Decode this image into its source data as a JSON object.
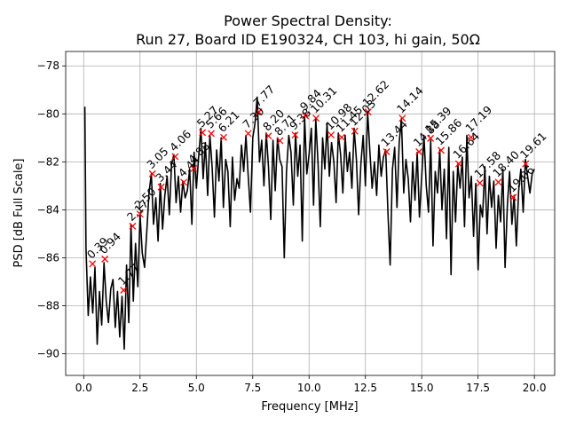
{
  "chart_data": {
    "type": "line",
    "title_line1": "Power Spectral Density:",
    "title_line2": "Run 27, Board ID E190324, CH 103, hi gain, 50Ω",
    "xlabel": "Frequency [MHz]",
    "ylabel": "PSD [dB Full Scale]",
    "xlim": [
      -0.8,
      20.9
    ],
    "ylim": [
      -90.9,
      -77.4
    ],
    "xticks": [
      0.0,
      2.5,
      5.0,
      7.5,
      10.0,
      12.5,
      15.0,
      17.5,
      20.0
    ],
    "xtick_labels": [
      "0.0",
      "2.5",
      "5.0",
      "7.5",
      "10.0",
      "12.5",
      "15.0",
      "17.5",
      "20.0"
    ],
    "yticks": [
      -90,
      -88,
      -86,
      -84,
      -82,
      -80,
      -78
    ],
    "ytick_labels": [
      "−90",
      "−88",
      "−86",
      "−84",
      "−82",
      "−80",
      "−78"
    ],
    "grid": true,
    "series": [
      {
        "color": "#000000",
        "x": [
          0.05,
          0.1,
          0.2,
          0.3,
          0.4,
          0.5,
          0.6,
          0.7,
          0.8,
          0.9,
          1.0,
          1.1,
          1.2,
          1.3,
          1.4,
          1.5,
          1.6,
          1.7,
          1.8,
          1.9,
          2.0,
          2.1,
          2.2,
          2.3,
          2.4,
          2.5,
          2.6,
          2.7,
          2.8,
          2.9,
          3.0,
          3.1,
          3.2,
          3.3,
          3.4,
          3.5,
          3.6,
          3.7,
          3.8,
          3.9,
          4.0,
          4.1,
          4.2,
          4.3,
          4.4,
          4.5,
          4.6,
          4.7,
          4.8,
          4.9,
          5.0,
          5.1,
          5.2,
          5.3,
          5.4,
          5.5,
          5.6,
          5.7,
          5.8,
          5.9,
          6.0,
          6.1,
          6.2,
          6.3,
          6.4,
          6.5,
          6.6,
          6.7,
          6.8,
          6.9,
          7.0,
          7.1,
          7.2,
          7.3,
          7.4,
          7.5,
          7.6,
          7.7,
          7.8,
          7.9,
          8.0,
          8.1,
          8.2,
          8.3,
          8.4,
          8.5,
          8.6,
          8.7,
          8.8,
          8.9,
          9.0,
          9.1,
          9.2,
          9.3,
          9.4,
          9.5,
          9.6,
          9.7,
          9.8,
          9.9,
          10.0,
          10.1,
          10.2,
          10.3,
          10.4,
          10.5,
          10.6,
          10.7,
          10.8,
          10.9,
          11.0,
          11.1,
          11.2,
          11.3,
          11.4,
          11.5,
          11.6,
          11.7,
          11.8,
          11.9,
          12.0,
          12.1,
          12.2,
          12.3,
          12.4,
          12.5,
          12.6,
          12.7,
          12.8,
          12.9,
          13.0,
          13.1,
          13.2,
          13.3,
          13.4,
          13.5,
          13.6,
          13.7,
          13.8,
          13.9,
          14.0,
          14.1,
          14.2,
          14.3,
          14.4,
          14.5,
          14.6,
          14.7,
          14.8,
          14.9,
          15.0,
          15.1,
          15.2,
          15.3,
          15.4,
          15.5,
          15.6,
          15.7,
          15.8,
          15.9,
          16.0,
          16.1,
          16.2,
          16.3,
          16.4,
          16.5,
          16.6,
          16.7,
          16.8,
          16.9,
          17.0,
          17.1,
          17.2,
          17.3,
          17.4,
          17.5,
          17.6,
          17.7,
          17.8,
          17.9,
          18.0,
          18.1,
          18.2,
          18.3,
          18.4,
          18.5,
          18.6,
          18.7,
          18.8,
          18.9,
          19.0,
          19.1,
          19.2,
          19.3,
          19.4,
          19.5,
          19.6,
          19.7,
          19.8,
          19.9,
          20.0
        ],
        "y": [
          -79.7,
          -85.6,
          -88.4,
          -86.8,
          -88.3,
          -86.4,
          -89.6,
          -87.4,
          -88.8,
          -86.2,
          -87.8,
          -88.7,
          -87.3,
          -86.9,
          -88.9,
          -87.4,
          -89.3,
          -87.6,
          -89.8,
          -86.3,
          -88.7,
          -84.6,
          -87.8,
          -85.4,
          -87.2,
          -84.2,
          -85.8,
          -86.4,
          -84.9,
          -83.3,
          -82.5,
          -84.6,
          -83.5,
          -85.3,
          -82.9,
          -84.8,
          -83.4,
          -82.6,
          -84.2,
          -82.1,
          -81.7,
          -83.7,
          -82.6,
          -84.1,
          -82.8,
          -83.5,
          -83.2,
          -82.3,
          -84.6,
          -81.6,
          -83.1,
          -81.8,
          -80.6,
          -82.7,
          -81.2,
          -83.4,
          -80.9,
          -82.2,
          -84.3,
          -81.5,
          -82.8,
          -81.0,
          -83.9,
          -81.9,
          -82.4,
          -84.7,
          -81.8,
          -83.6,
          -82.7,
          -83.1,
          -81.3,
          -82.4,
          -80.9,
          -82.6,
          -84.1,
          -81.0,
          -80.4,
          -79.3,
          -82.0,
          -81.1,
          -83.0,
          -80.8,
          -82.2,
          -84.4,
          -81.1,
          -83.2,
          -81.0,
          -81.9,
          -82.2,
          -86.0,
          -82.4,
          -80.9,
          -81.6,
          -83.8,
          -80.8,
          -82.6,
          -81.3,
          -85.3,
          -80.1,
          -82.5,
          -81.7,
          -80.6,
          -83.8,
          -80.2,
          -82.1,
          -84.7,
          -81.0,
          -82.3,
          -80.4,
          -82.6,
          -81.2,
          -82.0,
          -83.7,
          -80.8,
          -81.7,
          -83.3,
          -80.9,
          -82.4,
          -81.6,
          -83.1,
          -80.6,
          -81.9,
          -84.2,
          -82.1,
          -80.9,
          -83.0,
          -79.9,
          -81.6,
          -83.1,
          -82.0,
          -83.4,
          -81.3,
          -82.6,
          -81.8,
          -81.5,
          -84.1,
          -86.3,
          -82.3,
          -81.4,
          -83.9,
          -81.2,
          -80.2,
          -83.3,
          -81.9,
          -82.7,
          -84.5,
          -82.0,
          -83.6,
          -81.6,
          -84.3,
          -82.6,
          -80.9,
          -83.0,
          -84.1,
          -81.1,
          -85.5,
          -82.4,
          -83.3,
          -81.5,
          -84.0,
          -82.3,
          -85.2,
          -81.4,
          -86.7,
          -82.4,
          -84.5,
          -82.1,
          -83.1,
          -81.8,
          -84.7,
          -80.9,
          -83.5,
          -82.6,
          -85.1,
          -82.9,
          -86.5,
          -83.8,
          -84.3,
          -82.2,
          -85.0,
          -82.6,
          -83.9,
          -82.8,
          -85.6,
          -83.4,
          -84.5,
          -82.3,
          -86.4,
          -83.8,
          -82.4,
          -84.6,
          -83.4,
          -85.5,
          -83.2,
          -82.3,
          -84.1,
          -81.9,
          -82.6,
          -83.3,
          -82.5,
          -82.3
        ]
      }
    ],
    "peaks": [
      {
        "x": 0.39,
        "y": -86.25,
        "label": "0.39"
      },
      {
        "x": 0.94,
        "y": -86.05,
        "label": "0.94"
      },
      {
        "x": 1.77,
        "y": -87.35,
        "label": "1.77"
      },
      {
        "x": 2.17,
        "y": -84.68,
        "label": "2.17"
      },
      {
        "x": 2.5,
        "y": -84.18,
        "label": "2.50"
      },
      {
        "x": 3.05,
        "y": -82.5,
        "label": "3.05"
      },
      {
        "x": 3.44,
        "y": -83.05,
        "label": "3.44"
      },
      {
        "x": 4.06,
        "y": -81.78,
        "label": "4.06"
      },
      {
        "x": 4.44,
        "y": -82.85,
        "label": "4.44"
      },
      {
        "x": 4.88,
        "y": -82.28,
        "label": "4.88"
      },
      {
        "x": 5.27,
        "y": -80.78,
        "label": "5.27"
      },
      {
        "x": 5.66,
        "y": -80.82,
        "label": "5.66"
      },
      {
        "x": 6.21,
        "y": -80.98,
        "label": "6.21"
      },
      {
        "x": 7.3,
        "y": -80.82,
        "label": "7.30"
      },
      {
        "x": 7.77,
        "y": -79.92,
        "label": "7.77"
      },
      {
        "x": 8.2,
        "y": -80.92,
        "label": "8.20"
      },
      {
        "x": 8.71,
        "y": -81.12,
        "label": "8.71"
      },
      {
        "x": 9.38,
        "y": -80.88,
        "label": "9.38"
      },
      {
        "x": 9.84,
        "y": -80.08,
        "label": "9.84"
      },
      {
        "x": 10.31,
        "y": -80.18,
        "label": "10.31"
      },
      {
        "x": 10.98,
        "y": -80.88,
        "label": "10.98"
      },
      {
        "x": 11.45,
        "y": -80.98,
        "label": "11.45"
      },
      {
        "x": 12.03,
        "y": -80.72,
        "label": "12.03"
      },
      {
        "x": 12.62,
        "y": -79.92,
        "label": "12.62"
      },
      {
        "x": 13.44,
        "y": -81.58,
        "label": "13.44"
      },
      {
        "x": 14.14,
        "y": -80.18,
        "label": "14.14"
      },
      {
        "x": 14.88,
        "y": -81.58,
        "label": "14.88"
      },
      {
        "x": 15.39,
        "y": -81.02,
        "label": "15.39"
      },
      {
        "x": 15.86,
        "y": -81.52,
        "label": "15.86"
      },
      {
        "x": 16.64,
        "y": -82.08,
        "label": "16.64"
      },
      {
        "x": 17.19,
        "y": -80.98,
        "label": "17.19"
      },
      {
        "x": 17.58,
        "y": -82.88,
        "label": "17.58"
      },
      {
        "x": 18.4,
        "y": -82.85,
        "label": "18.40"
      },
      {
        "x": 19.06,
        "y": -83.48,
        "label": "19.06"
      },
      {
        "x": 19.61,
        "y": -82.08,
        "label": "19.61"
      }
    ]
  }
}
